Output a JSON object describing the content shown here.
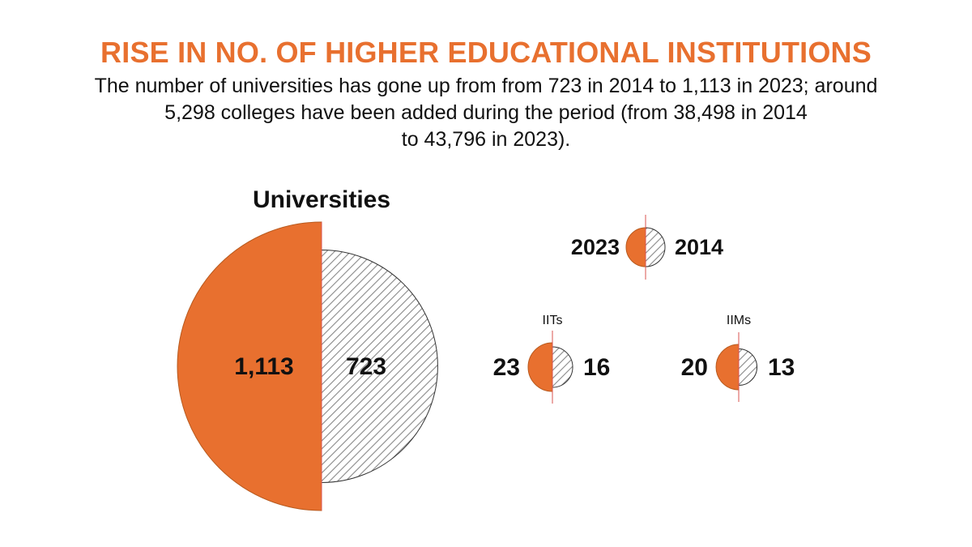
{
  "title": "RISE IN NO. OF HIGHER EDUCATIONAL INSTITUTIONS",
  "subtitle_lines": [
    "The number of universities has gone up from from 723 in 2014 to 1,113 in 2023; around",
    "5,298 colleges have been added during the period (from 38,498 in 2014",
    "to 43,796 in 2023)."
  ],
  "colors": {
    "accent": "#e8702f",
    "title": "#e8702f",
    "hatch": "#888888",
    "outline": "#333333",
    "divider": "#d9534f"
  },
  "legend": {
    "left_label": "2023",
    "right_label": "2014"
  },
  "chart_data": [
    {
      "type": "paired-half-circles",
      "title": "Universities",
      "series": [
        {
          "name": "2023",
          "value": 1113,
          "label": "1,113"
        },
        {
          "name": "2014",
          "value": 723,
          "label": "723"
        }
      ]
    },
    {
      "type": "paired-half-circles",
      "title": "IITs",
      "series": [
        {
          "name": "2023",
          "value": 23,
          "label": "23"
        },
        {
          "name": "2014",
          "value": 16,
          "label": "16"
        }
      ]
    },
    {
      "type": "paired-half-circles",
      "title": "IIMs",
      "series": [
        {
          "name": "2023",
          "value": 20,
          "label": "20"
        },
        {
          "name": "2014",
          "value": 13,
          "label": "13"
        }
      ]
    }
  ]
}
